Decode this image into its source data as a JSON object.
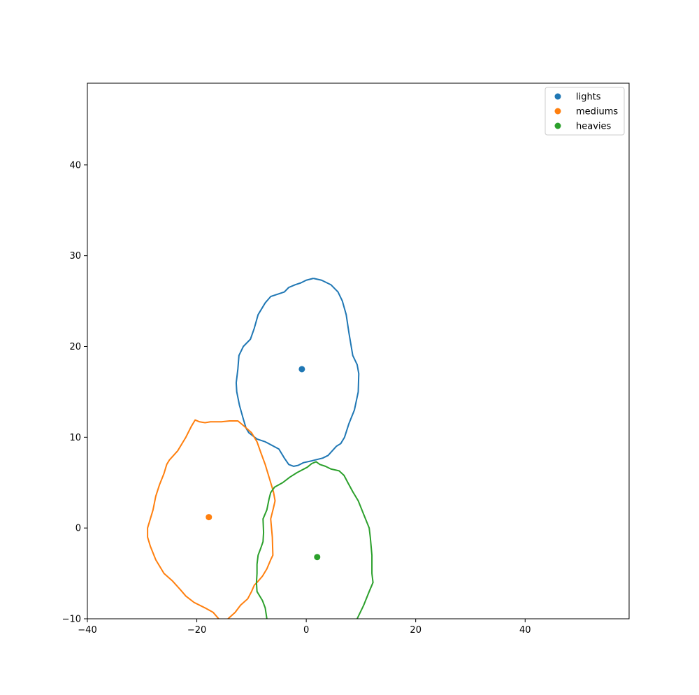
{
  "chart_data": {
    "type": "scatter",
    "title": "",
    "xlabel": "",
    "ylabel": "",
    "xlim": [
      -40,
      59
    ],
    "ylim": [
      -10,
      49
    ],
    "xticks": [
      -40,
      -20,
      0,
      20,
      40
    ],
    "yticks": [
      -10,
      0,
      10,
      20,
      30,
      40
    ],
    "xtick_labels": [
      "−40",
      "−20",
      "0",
      "20",
      "40"
    ],
    "ytick_labels": [
      "−10",
      "0",
      "10",
      "20",
      "30",
      "40"
    ],
    "grid": false,
    "legend_position": "top-right",
    "series": [
      {
        "name": "lights",
        "color": "#1f77b4",
        "centroid": [
          -0.8,
          17.5
        ],
        "contour": [
          [
            1.3,
            27.5
          ],
          [
            2.8,
            27.3
          ],
          [
            4.5,
            26.8
          ],
          [
            5.8,
            26.0
          ],
          [
            6.6,
            25.0
          ],
          [
            7.3,
            23.5
          ],
          [
            7.8,
            21.5
          ],
          [
            8.5,
            19.0
          ],
          [
            9.3,
            18.0
          ],
          [
            9.6,
            17.0
          ],
          [
            9.5,
            15.0
          ],
          [
            8.8,
            13.0
          ],
          [
            7.8,
            11.5
          ],
          [
            7.0,
            10.0
          ],
          [
            6.3,
            9.3
          ],
          [
            5.5,
            9.0
          ],
          [
            4.0,
            8.0
          ],
          [
            3.0,
            7.7
          ],
          [
            1.0,
            7.4
          ],
          [
            -0.5,
            7.2
          ],
          [
            -1.5,
            6.9
          ],
          [
            -2.3,
            6.8
          ],
          [
            -3.2,
            7.0
          ],
          [
            -4.0,
            7.7
          ],
          [
            -5.0,
            8.7
          ],
          [
            -7.5,
            9.5
          ],
          [
            -9.0,
            9.8
          ],
          [
            -10.5,
            10.5
          ],
          [
            -11.0,
            11.0
          ],
          [
            -11.5,
            12.0
          ],
          [
            -12.2,
            13.5
          ],
          [
            -12.7,
            15.0
          ],
          [
            -12.8,
            16.0
          ],
          [
            -12.5,
            17.5
          ],
          [
            -12.3,
            19.0
          ],
          [
            -11.5,
            20.0
          ],
          [
            -10.2,
            20.8
          ],
          [
            -9.5,
            22.0
          ],
          [
            -8.8,
            23.5
          ],
          [
            -7.5,
            24.8
          ],
          [
            -6.5,
            25.5
          ],
          [
            -5.0,
            25.8
          ],
          [
            -4.0,
            26.0
          ],
          [
            -3.2,
            26.5
          ],
          [
            -2.0,
            26.8
          ],
          [
            -1.0,
            27.0
          ],
          [
            0.0,
            27.3
          ],
          [
            1.3,
            27.5
          ]
        ]
      },
      {
        "name": "mediums",
        "color": "#ff7f0e",
        "centroid": [
          -17.8,
          1.2
        ],
        "contour": [
          [
            -14.3,
            -10.0
          ],
          [
            -13.0,
            -9.3
          ],
          [
            -12.0,
            -8.5
          ],
          [
            -10.7,
            -7.8
          ],
          [
            -10.0,
            -7.0
          ],
          [
            -9.5,
            -6.3
          ],
          [
            -9.0,
            -6.0
          ],
          [
            -8.0,
            -5.3
          ],
          [
            -7.2,
            -4.5
          ],
          [
            -6.5,
            -3.5
          ],
          [
            -6.1,
            -3.0
          ],
          [
            -6.2,
            -1.0
          ],
          [
            -6.5,
            1.0
          ],
          [
            -6.0,
            2.2
          ],
          [
            -5.7,
            3.0
          ],
          [
            -6.0,
            4.0
          ],
          [
            -6.5,
            5.0
          ],
          [
            -7.0,
            6.0
          ],
          [
            -7.5,
            7.0
          ],
          [
            -8.3,
            8.3
          ],
          [
            -9.0,
            9.5
          ],
          [
            -10.0,
            10.5
          ],
          [
            -11.5,
            11.3
          ],
          [
            -12.5,
            11.8
          ],
          [
            -14.0,
            11.8
          ],
          [
            -15.5,
            11.7
          ],
          [
            -17.5,
            11.7
          ],
          [
            -18.5,
            11.6
          ],
          [
            -19.5,
            11.7
          ],
          [
            -20.3,
            11.9
          ],
          [
            -21.0,
            11.2
          ],
          [
            -22.0,
            10.0
          ],
          [
            -23.5,
            8.5
          ],
          [
            -25.0,
            7.5
          ],
          [
            -25.5,
            7.0
          ],
          [
            -26.0,
            6.0
          ],
          [
            -26.8,
            4.8
          ],
          [
            -27.5,
            3.5
          ],
          [
            -28.0,
            2.0
          ],
          [
            -28.5,
            1.0
          ],
          [
            -29.0,
            0.0
          ],
          [
            -29.0,
            -1.0
          ],
          [
            -28.5,
            -2.0
          ],
          [
            -27.5,
            -3.5
          ],
          [
            -26.0,
            -5.0
          ],
          [
            -24.5,
            -5.8
          ],
          [
            -23.0,
            -6.8
          ],
          [
            -22.0,
            -7.5
          ],
          [
            -20.5,
            -8.2
          ],
          [
            -18.5,
            -8.8
          ],
          [
            -17.0,
            -9.3
          ],
          [
            -16.0,
            -10.0
          ]
        ]
      },
      {
        "name": "heavies",
        "color": "#2ca02c",
        "centroid": [
          2.0,
          -3.2
        ],
        "contour": [
          [
            -7.2,
            -10.0
          ],
          [
            -7.5,
            -8.8
          ],
          [
            -8.0,
            -8.0
          ],
          [
            -8.5,
            -7.5
          ],
          [
            -9.0,
            -7.0
          ],
          [
            -9.1,
            -6.0
          ],
          [
            -9.0,
            -5.0
          ],
          [
            -9.0,
            -4.0
          ],
          [
            -8.8,
            -3.0
          ],
          [
            -8.3,
            -2.2
          ],
          [
            -7.9,
            -1.5
          ],
          [
            -7.8,
            -0.5
          ],
          [
            -7.9,
            1.0
          ],
          [
            -7.2,
            2.0
          ],
          [
            -6.8,
            3.2
          ],
          [
            -6.5,
            3.9
          ],
          [
            -5.8,
            4.5
          ],
          [
            -4.3,
            5.0
          ],
          [
            -3.0,
            5.6
          ],
          [
            -1.7,
            6.1
          ],
          [
            0.2,
            6.7
          ],
          [
            1.0,
            7.1
          ],
          [
            1.8,
            7.3
          ],
          [
            2.5,
            7.0
          ],
          [
            3.5,
            6.8
          ],
          [
            4.5,
            6.5
          ],
          [
            6.0,
            6.3
          ],
          [
            6.9,
            5.8
          ],
          [
            7.6,
            5.0
          ],
          [
            8.5,
            4.0
          ],
          [
            9.5,
            3.0
          ],
          [
            10.5,
            1.5
          ],
          [
            11.5,
            0.0
          ],
          [
            11.7,
            -1.0
          ],
          [
            12.0,
            -3.0
          ],
          [
            12.0,
            -5.0
          ],
          [
            12.2,
            -6.0
          ],
          [
            11.5,
            -7.0
          ],
          [
            10.5,
            -8.5
          ],
          [
            9.3,
            -10.0
          ]
        ]
      }
    ]
  }
}
